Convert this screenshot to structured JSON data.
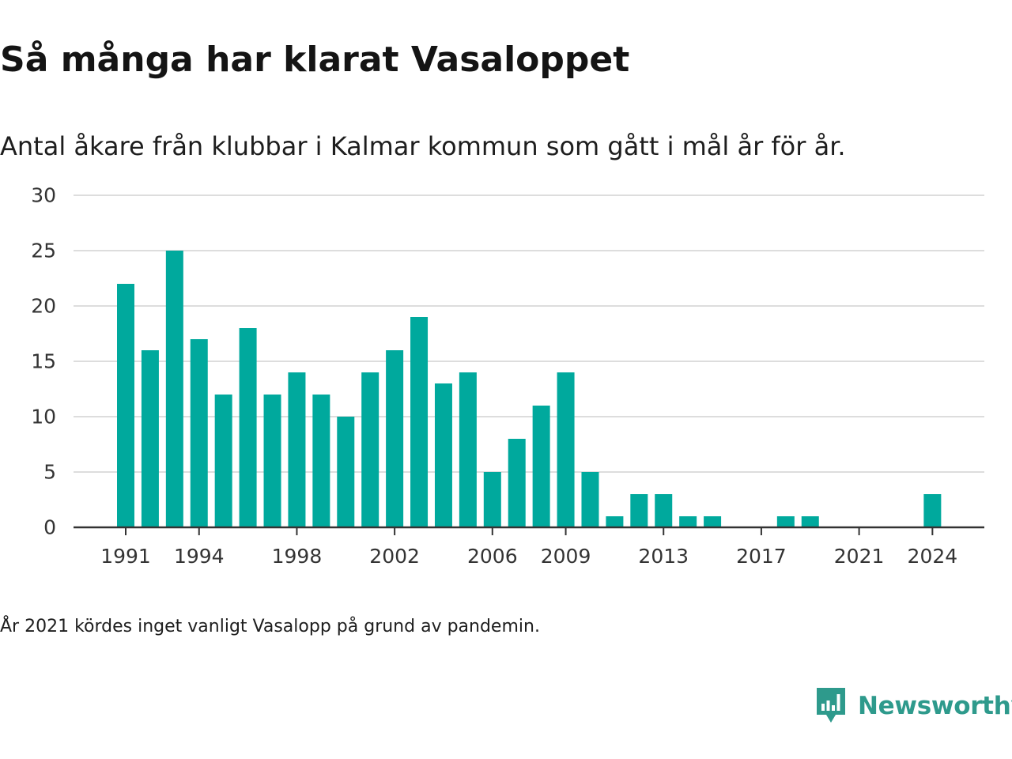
{
  "title": "Så många har klarat Vasaloppet",
  "subtitle": "Antal åkare från klubbar i Kalmar kommun som gått i mål år för år.",
  "note": "År 2021 kördes inget vanligt Vasalopp på grund av pandemin.",
  "brand": {
    "name": "Newsworthy",
    "icon": "newsworthy-logo-icon",
    "color": "#2e9a8c"
  },
  "colors": {
    "bar": "#00a99d",
    "grid": "#dddddd",
    "axis": "#333333"
  },
  "chart_data": {
    "type": "bar",
    "title": "Så många har klarat Vasaloppet",
    "subtitle": "Antal åkare från klubbar i Kalmar kommun som gått i mål år för år.",
    "xlabel": "",
    "ylabel": "",
    "ylim": [
      0,
      30
    ],
    "yticks": [
      0,
      5,
      10,
      15,
      20,
      25,
      30
    ],
    "xticks": [
      1991,
      1994,
      1998,
      2002,
      2006,
      2009,
      2013,
      2017,
      2021,
      2024
    ],
    "grid": true,
    "categories": [
      1991,
      1992,
      1993,
      1994,
      1995,
      1996,
      1997,
      1998,
      1999,
      2000,
      2001,
      2002,
      2003,
      2004,
      2005,
      2006,
      2007,
      2008,
      2009,
      2010,
      2011,
      2012,
      2013,
      2014,
      2015,
      2016,
      2017,
      2018,
      2019,
      2020,
      2021,
      2022,
      2023,
      2024
    ],
    "values": [
      22,
      16,
      25,
      17,
      12,
      18,
      12,
      14,
      12,
      10,
      14,
      16,
      19,
      13,
      14,
      5,
      8,
      11,
      14,
      5,
      1,
      3,
      3,
      1,
      1,
      0,
      0,
      1,
      1,
      0,
      0,
      0,
      0,
      3
    ]
  }
}
